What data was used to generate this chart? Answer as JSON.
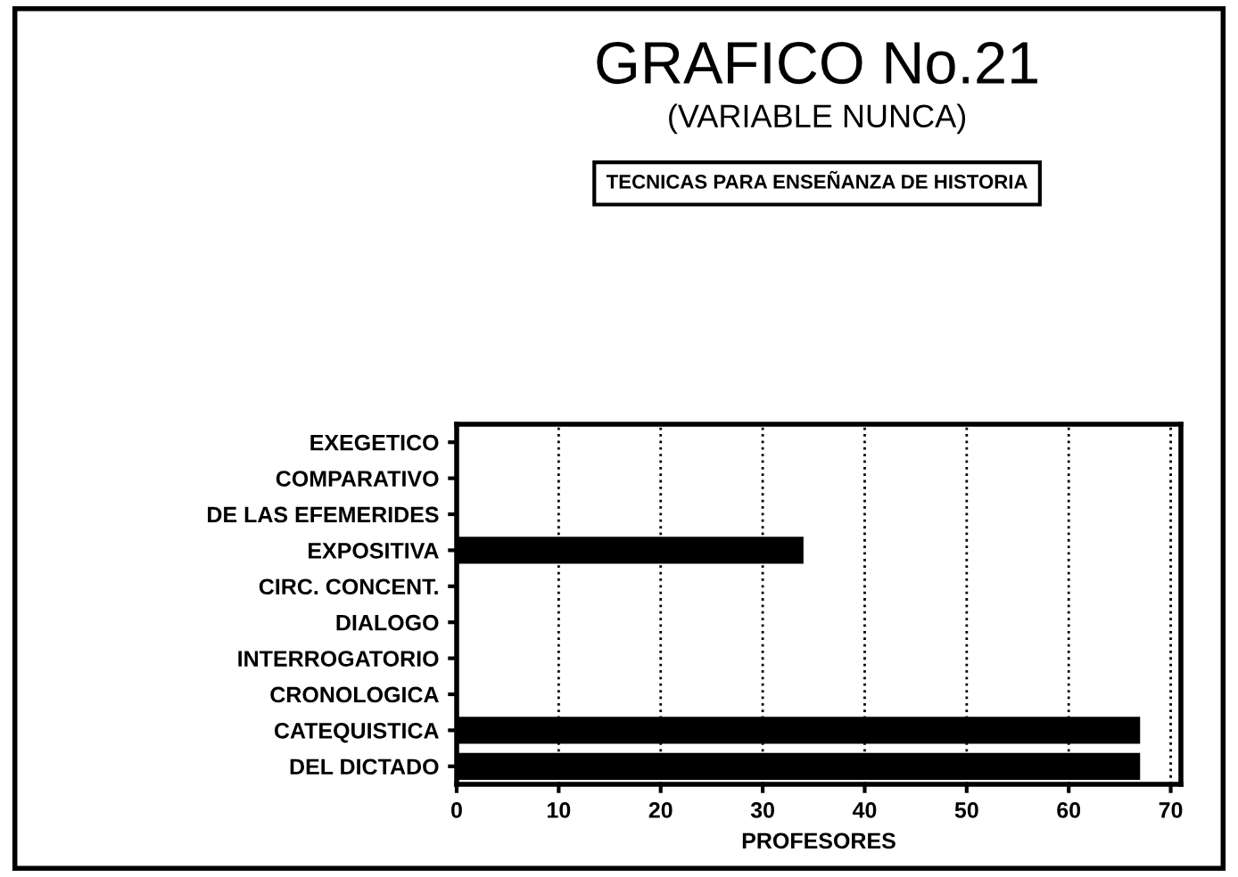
{
  "chart_data": {
    "type": "bar",
    "orientation": "horizontal",
    "title": "GRAFICO No.21",
    "subtitle": "(VARIABLE NUNCA)",
    "annotations": [
      "TECNICAS PARA ENSEÑANZA DE HISTORIA"
    ],
    "categories": [
      "EXEGETICO",
      "COMPARATIVO",
      "DE LAS EFEMERIDES",
      "EXPOSITIVA",
      "CIRC. CONCENT.",
      "DIALOGO",
      "INTERROGATORIO",
      "CRONOLOGICA",
      "CATEQUISTICA",
      "DEL DICTADO"
    ],
    "values": [
      0,
      0,
      0,
      34,
      0,
      0,
      0,
      0,
      67,
      67
    ],
    "color": "#000000",
    "xlabel": "PROFESORES",
    "xlim": [
      0,
      71
    ],
    "xticks": [
      0,
      10,
      20,
      30,
      40,
      50,
      60,
      70
    ],
    "grid": "x",
    "line_style": "dotted",
    "legend": false
  }
}
